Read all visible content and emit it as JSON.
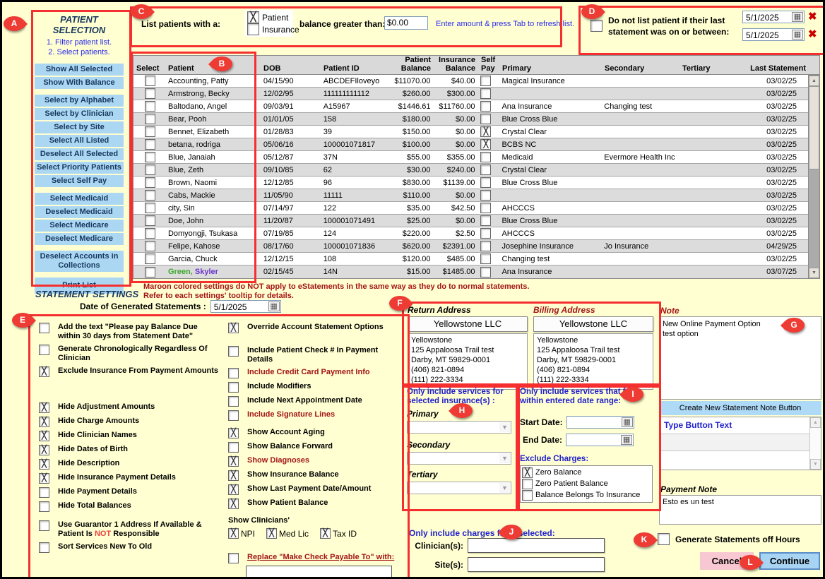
{
  "annotations": [
    "A",
    "B",
    "C",
    "D",
    "E",
    "F",
    "G",
    "H",
    "I",
    "J",
    "K",
    "L"
  ],
  "icons": {
    "calendar": "▦",
    "red_x": "✖",
    "scroll_up": "▲",
    "scroll_down": "▼",
    "dropdown": "▼",
    "checkbox_x": "╳"
  },
  "patient_selection": {
    "title": "PATIENT SELECTION",
    "step1": "1. Filter patient list.",
    "step2": "2. Select patients.",
    "button_groups": [
      [
        "Show All Selected",
        "Show With Balance"
      ],
      [
        "Select by Alphabet",
        "Select by Clinician",
        "Select by Site",
        "Select All Listed",
        "Deselect All Selected",
        "Select Priority Patients",
        "Select Self Pay"
      ],
      [
        "Select Medicaid",
        "Deselect Medicaid",
        "Select Medicare",
        "Deselect Medicare"
      ],
      [
        "Deselect Accounts in Collections"
      ],
      [
        "Print List"
      ]
    ]
  },
  "filter_bar": {
    "label": "List patients with a:",
    "options": [
      {
        "label": "Patient",
        "checked": true
      },
      {
        "label": "Insurance",
        "checked": false
      }
    ],
    "balance_label": "balance greater than:",
    "amount_value": "$0.00",
    "hint": "Enter amount & press Tab to refresh list."
  },
  "last_statement_filter": {
    "checked": false,
    "label": "Do not list patient if their last statement was on or between:",
    "date_from": "5/1/2025",
    "date_to": "5/1/2025"
  },
  "patient_table": {
    "headers": {
      "select": "Select",
      "patient": "Patient",
      "dob": "DOB",
      "patient_id": "Patient ID",
      "patient_balance": "Patient Balance",
      "insurance_balance": "Insurance Balance",
      "self_pay": "Self Pay",
      "primary": "Primary",
      "secondary": "Secondary",
      "tertiary": "Tertiary",
      "last_statement": "Last Statement"
    },
    "rows": [
      {
        "name": "Accounting, Patty",
        "dob": "04/15/90",
        "id": "ABCDEFIloveyo",
        "patient_balance": "$11070.00",
        "insurance_balance": "$40.00",
        "self_pay": false,
        "primary": "Magical Insurance",
        "secondary": "",
        "tertiary": "",
        "last_statement": "03/02/25"
      },
      {
        "name": "Armstrong, Becky",
        "dob": "12/02/95",
        "id": "111111111112",
        "patient_balance": "$260.00",
        "insurance_balance": "$300.00",
        "self_pay": false,
        "primary": "",
        "secondary": "",
        "tertiary": "",
        "last_statement": "03/02/25"
      },
      {
        "name": "Baltodano, Angel",
        "dob": "09/03/91",
        "id": "A15967",
        "patient_balance": "$1446.61",
        "insurance_balance": "$11760.00",
        "self_pay": false,
        "primary": "Ana Insurance",
        "secondary": "Changing test",
        "tertiary": "",
        "last_statement": "03/02/25"
      },
      {
        "name": "Bear, Pooh",
        "dob": "01/01/05",
        "id": "158",
        "patient_balance": "$180.00",
        "insurance_balance": "$0.00",
        "self_pay": false,
        "primary": "Blue Cross Blue",
        "secondary": "",
        "tertiary": "",
        "last_statement": "03/02/25"
      },
      {
        "name": "Bennet, Elizabeth",
        "dob": "01/28/83",
        "id": "39",
        "patient_balance": "$150.00",
        "insurance_balance": "$0.00",
        "self_pay": true,
        "primary": "Crystal Clear",
        "secondary": "",
        "tertiary": "",
        "last_statement": "03/02/25"
      },
      {
        "name": "betana, rodriga",
        "dob": "05/06/16",
        "id": "100001071817",
        "patient_balance": "$100.00",
        "insurance_balance": "$0.00",
        "self_pay": true,
        "primary": "BCBS NC",
        "secondary": "",
        "tertiary": "",
        "last_statement": "03/02/25"
      },
      {
        "name": "Blue, Janaiah",
        "dob": "05/12/87",
        "id": "37N",
        "patient_balance": "$55.00",
        "insurance_balance": "$355.00",
        "self_pay": false,
        "primary": "Medicaid",
        "secondary": "Evermore Health Inc",
        "tertiary": "",
        "last_statement": "03/02/25"
      },
      {
        "name": "Blue, Zeth",
        "dob": "09/10/85",
        "id": "62",
        "patient_balance": "$30.00",
        "insurance_balance": "$240.00",
        "self_pay": false,
        "primary": "Crystal Clear",
        "secondary": "",
        "tertiary": "",
        "last_statement": "03/02/25"
      },
      {
        "name": "Brown, Naomi",
        "dob": "12/12/85",
        "id": "96",
        "patient_balance": "$830.00",
        "insurance_balance": "$1139.00",
        "self_pay": false,
        "primary": "Blue Cross Blue",
        "secondary": "",
        "tertiary": "",
        "last_statement": "03/02/25"
      },
      {
        "name": "Cabs, Mackie",
        "dob": "11/05/90",
        "id": "11111",
        "patient_balance": "$110.00",
        "insurance_balance": "$0.00",
        "self_pay": false,
        "primary": "",
        "secondary": "",
        "tertiary": "",
        "last_statement": "03/02/25"
      },
      {
        "name": "city, Sin",
        "dob": "07/14/97",
        "id": "122",
        "patient_balance": "$35.00",
        "insurance_balance": "$42.50",
        "self_pay": false,
        "primary": "AHCCCS",
        "secondary": "",
        "tertiary": "",
        "last_statement": "03/02/25"
      },
      {
        "name": "Doe, John",
        "dob": "11/20/87",
        "id": "100001071491",
        "patient_balance": "$25.00",
        "insurance_balance": "$0.00",
        "self_pay": false,
        "primary": "Blue Cross Blue",
        "secondary": "",
        "tertiary": "",
        "last_statement": "03/02/25"
      },
      {
        "name": "Domyongji, Tsukasa",
        "dob": "07/19/85",
        "id": "124",
        "patient_balance": "$220.00",
        "insurance_balance": "$2.50",
        "self_pay": false,
        "primary": "AHCCCS",
        "secondary": "",
        "tertiary": "",
        "last_statement": "03/02/25"
      },
      {
        "name": "Felipe, Kahose",
        "dob": "08/17/60",
        "id": "100001071836",
        "patient_balance": "$620.00",
        "insurance_balance": "$2391.00",
        "self_pay": false,
        "primary": "Josephine Insurance",
        "secondary": "Jo Insurance",
        "tertiary": "",
        "last_statement": "04/29/25"
      },
      {
        "name": "Garcia, Chuck",
        "dob": "12/12/15",
        "id": "108",
        "patient_balance": "$120.00",
        "insurance_balance": "$485.00",
        "self_pay": false,
        "primary": "Changing test",
        "secondary": "",
        "tertiary": "",
        "last_statement": "03/02/25"
      },
      {
        "name": "Green, Skyler",
        "dob": "02/15/45",
        "id": "14N",
        "patient_balance": "$15.00",
        "insurance_balance": "$1485.00",
        "self_pay": false,
        "primary": "Ana Insurance",
        "secondary": "",
        "tertiary": "",
        "last_statement": "03/07/25",
        "name_colors": [
          "#3CA72C",
          "#6A35CC"
        ]
      }
    ]
  },
  "statement_settings": {
    "title": "STATEMENT SETTINGS",
    "warning": "Maroon colored settings do NOT apply to eStatements in the same way as they do to normal statements. Refer to each settings' tooltip for details.",
    "date_label": "Date of Generated Statements :",
    "date_value": "5/1/2025",
    "left_options": [
      {
        "label": "Add the text \"Please pay Balance Due within 30 days from Statement Date\"",
        "checked": false
      },
      {
        "label": "Generate Chronologically Regardless Of Clinician",
        "checked": false
      },
      {
        "label": "Exclude Insurance From Payment Amounts",
        "checked": true
      },
      {
        "label": "Hide Adjustment Amounts",
        "checked": true,
        "gap_before": 36
      },
      {
        "label": "Hide Charge Amounts",
        "checked": true
      },
      {
        "label": "Hide Clinician Names",
        "checked": true
      },
      {
        "label": "Hide Dates of Birth",
        "checked": true
      },
      {
        "label": "Hide Description",
        "checked": true
      },
      {
        "label": "Hide Insurance Payment Details",
        "checked": true
      },
      {
        "label": "Hide Payment Details",
        "checked": false
      },
      {
        "label": "Hide Total Balances",
        "checked": false
      },
      {
        "label": "Use Guarantor 1 Address If Available & Patient Is NOT Responsible",
        "checked": false,
        "red_word": "NOT",
        "gap_before": 12
      },
      {
        "label": "Sort Services New To Old",
        "checked": false,
        "gap_before": 4
      }
    ],
    "right_options": [
      {
        "label": "Override Account Statement Options",
        "checked": true
      },
      {
        "label": "Include Patient Check # In Payment Details",
        "checked": false,
        "gap_before": 18
      },
      {
        "label": "Include Credit Card Payment Info",
        "checked": false,
        "maroon": true
      },
      {
        "label": "Include Modifiers",
        "checked": false
      },
      {
        "label": "Include Next Appointment Date",
        "checked": false
      },
      {
        "label": "Include Signature Lines",
        "checked": false,
        "maroon": true
      },
      {
        "label": "Show Account Aging",
        "checked": true,
        "gap_before": 10
      },
      {
        "label": "Show Balance Forward",
        "checked": false
      },
      {
        "label": "Show Diagnoses",
        "checked": true,
        "maroon": true
      },
      {
        "label": "Show Insurance Balance",
        "checked": true
      },
      {
        "label": "Show Last Payment Date/Amount",
        "checked": true
      },
      {
        "label": "Show Patient Balance",
        "checked": true
      }
    ],
    "clinicians_label": "Show Clinicians'",
    "clinician_checks": [
      {
        "label": "NPI",
        "checked": true
      },
      {
        "label": "Med Lic",
        "checked": true
      },
      {
        "label": "Tax ID",
        "checked": true
      }
    ],
    "replace_label": "Replace \"Make Check Payable To\" with:",
    "replace_checked": false
  },
  "addresses": {
    "return_label": "Return Address",
    "billing_label": "Billing Address",
    "company": "Yellowstone LLC",
    "lines": [
      "Yellowstone",
      "125 Appaloosa Trail test",
      "Darby, MT 59829-0001",
      "(406) 821-0894",
      "(111) 222-3334"
    ]
  },
  "insurance_filter": {
    "title": "Only include services for selected insurance(s) :",
    "primary_label": "Primary",
    "secondary_label": "Secondary",
    "tertiary_label": "Tertiary"
  },
  "date_range_filter": {
    "title": "Only include services that fall within entered date range:",
    "start_label": "Start Date:",
    "end_label": "End Date:",
    "start_value": "",
    "end_value": "",
    "exclude_title": "Exclude Charges:",
    "options": [
      {
        "label": "Zero Balance",
        "checked": true
      },
      {
        "label": "Zero Patient Balance",
        "checked": false
      },
      {
        "label": "Balance Belongs To Insurance",
        "checked": false
      }
    ]
  },
  "note_panel": {
    "title": "Note",
    "note_text": "New Online Payment Option\ntest option",
    "create_button": "Create New Statement Note Button",
    "first_list_item": "Type Button Text"
  },
  "payment_note": {
    "title": "Payment Note",
    "text": "Esto es un test"
  },
  "charges_filter": {
    "title": "Only include charges from selected:",
    "clinician_label": "Clinician(s):",
    "site_label": "Site(s):",
    "clinician_value": "",
    "site_value": ""
  },
  "footer": {
    "off_hours_label": "Generate Statements off Hours",
    "off_hours_checked": false,
    "cancel_label": "Cancel",
    "continue_label": "Continue"
  }
}
